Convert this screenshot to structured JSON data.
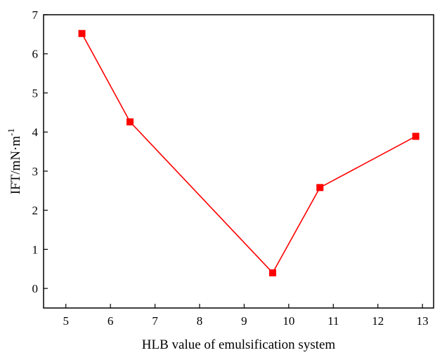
{
  "chart_data": {
    "type": "line",
    "title": "",
    "xlabel": "HLB value of emulsification system",
    "ylabel": "IFT/mN·m",
    "ylabel_superscript": "-1",
    "xlim": [
      4.5,
      13.25
    ],
    "ylim": [
      -0.5,
      7
    ],
    "xticks": [
      5,
      6,
      7,
      8,
      9,
      10,
      11,
      12,
      13
    ],
    "yticks": [
      0,
      1,
      2,
      3,
      4,
      5,
      6,
      7
    ],
    "grid": false,
    "series": [
      {
        "color": "#ff0000",
        "marker": "square",
        "points": [
          {
            "x": 5.36,
            "y": 6.52
          },
          {
            "x": 6.44,
            "y": 4.26
          },
          {
            "x": 9.64,
            "y": 0.4
          },
          {
            "x": 10.7,
            "y": 2.58
          },
          {
            "x": 12.85,
            "y": 3.89
          }
        ]
      }
    ]
  }
}
